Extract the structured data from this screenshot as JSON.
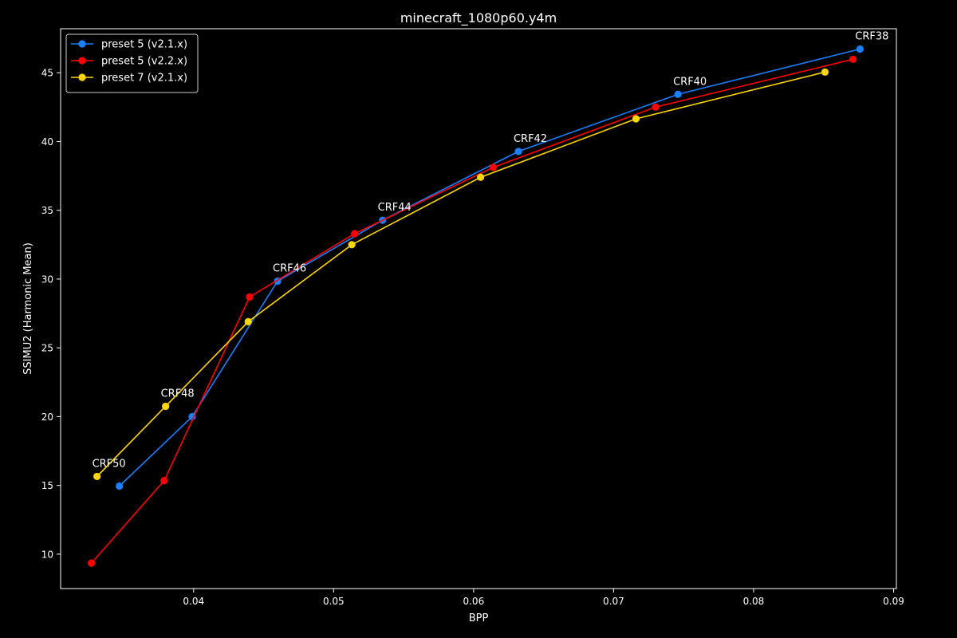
{
  "chart_data": {
    "type": "line",
    "title": "minecraft_1080p60.y4m",
    "xlabel": "BPP",
    "ylabel": "SSIMU2 (Harmonic Mean)",
    "xlim": [
      0.0305,
      0.0902
    ],
    "ylim": [
      7.5,
      48.2
    ],
    "x_ticks": [
      0.04,
      0.05,
      0.06,
      0.07,
      0.08,
      0.09
    ],
    "y_ticks": [
      10,
      15,
      20,
      25,
      30,
      35,
      40,
      45
    ],
    "grid": false,
    "legend_position": "top-left",
    "series": [
      {
        "name": "preset 5 (v2.1.x)",
        "color": "#1a80ff",
        "x": [
          0.0347,
          0.0399,
          0.046,
          0.0535,
          0.0632,
          0.0746,
          0.0876
        ],
        "y": [
          14.95,
          20.0,
          29.85,
          34.28,
          39.28,
          43.43,
          46.72
        ]
      },
      {
        "name": "preset 5 (v2.2.x)",
        "color": "#ff0000",
        "x": [
          0.0327,
          0.0379,
          0.044,
          0.0515,
          0.0614,
          0.073,
          0.0871
        ],
        "y": [
          9.35,
          15.35,
          28.7,
          33.3,
          38.12,
          42.5,
          45.98
        ]
      },
      {
        "name": "preset 7 (v2.1.x)",
        "color": "#ffd700",
        "x": [
          0.0331,
          0.038,
          0.0439,
          0.0513,
          0.0605,
          0.0716,
          0.0851
        ],
        "y": [
          15.65,
          20.75,
          26.9,
          32.5,
          37.4,
          41.65,
          45.05
        ]
      }
    ],
    "annotations": [
      {
        "text": "CRF50",
        "x": 0.0331,
        "y": 15.65
      },
      {
        "text": "CRF48",
        "x": 0.038,
        "y": 20.75
      },
      {
        "text": "CRF46",
        "x": 0.046,
        "y": 29.85
      },
      {
        "text": "CRF44",
        "x": 0.0535,
        "y": 34.28
      },
      {
        "text": "CRF42",
        "x": 0.0632,
        "y": 39.28
      },
      {
        "text": "CRF40",
        "x": 0.0746,
        "y": 43.43
      },
      {
        "text": "CRF38",
        "x": 0.0876,
        "y": 46.72
      }
    ]
  }
}
